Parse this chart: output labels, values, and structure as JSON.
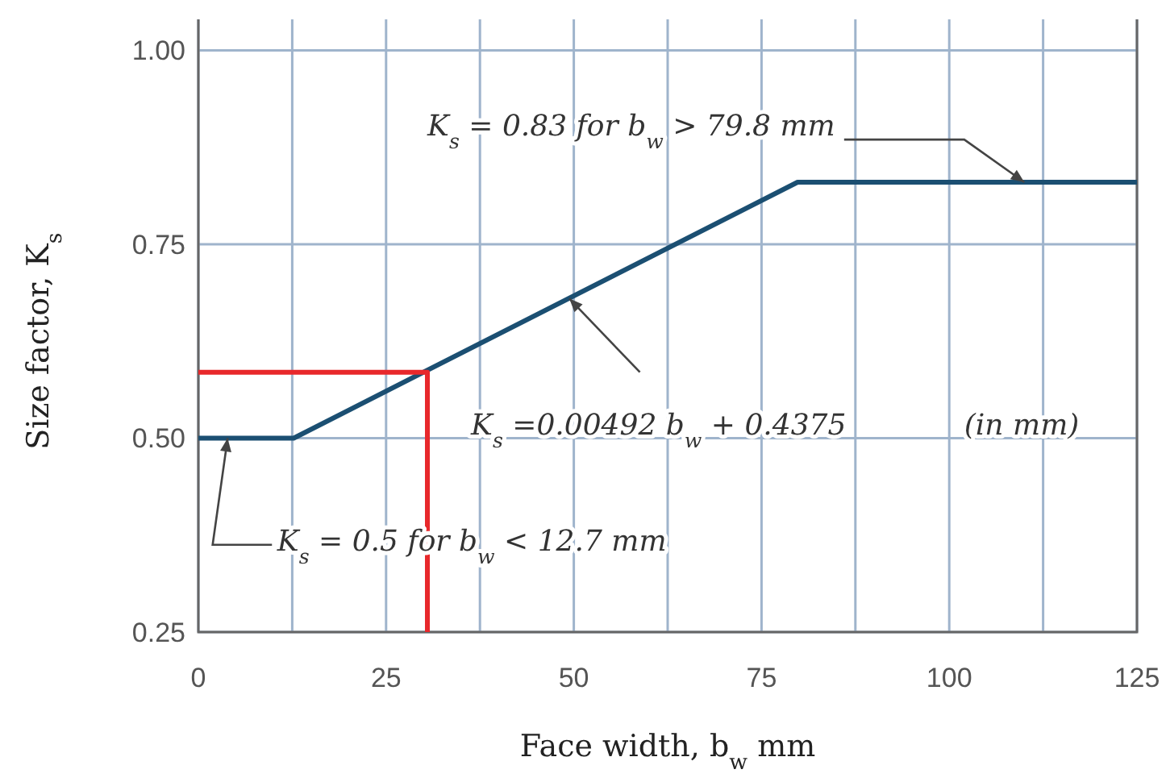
{
  "chart_data": {
    "type": "line",
    "xlabel": "Face width, b$_{w}$ mm",
    "ylabel": "Size factor, K$_{s}$",
    "xlim": [
      0,
      125
    ],
    "ylim": [
      0.25,
      1.04
    ],
    "xticks": [
      0,
      {
        "value": 12.5,
        "label": null
      },
      25,
      {
        "value": 37.5,
        "label": null
      },
      50,
      {
        "value": 62.5,
        "label": null
      },
      75,
      {
        "value": 87.5,
        "label": null
      },
      100,
      {
        "value": 112.5,
        "label": null
      },
      125
    ],
    "yticks": [
      {
        "value": 0.25,
        "label": "0.25"
      },
      {
        "value": 0.5,
        "label": "0.50"
      },
      {
        "value": 0.75,
        "label": "0.75"
      },
      {
        "value": 1,
        "label": "1.00"
      }
    ],
    "grid": true,
    "marker": "none",
    "line_style": "solid",
    "series": [
      {
        "color": "#1b4f72",
        "x": [
          0,
          12.7,
          79.8,
          125
        ],
        "values": [
          0.5,
          0.5,
          0.83,
          0.83
        ]
      },
      {
        "color": "#e8282b",
        "x": [
          0,
          30.5,
          30.5
        ],
        "values": [
          0.585,
          0.585,
          0.25
        ]
      }
    ],
    "annotations": [
      {
        "text": "K$_{s}$ = 0.83 for b$_{w}$ > 79.8 mm",
        "x": 110,
        "y": 0.83
      },
      {
        "text": "K$_{s}$ =0.00492 b$_{w}$ + 0.4375",
        "x": 49.4,
        "y": 0.68
      },
      "(in mm)",
      {
        "text": "K$_{s}$ = 0.5 for b$_{w}$ < 12.7 mm",
        "x": 3.9,
        "y": 0.5
      }
    ]
  }
}
